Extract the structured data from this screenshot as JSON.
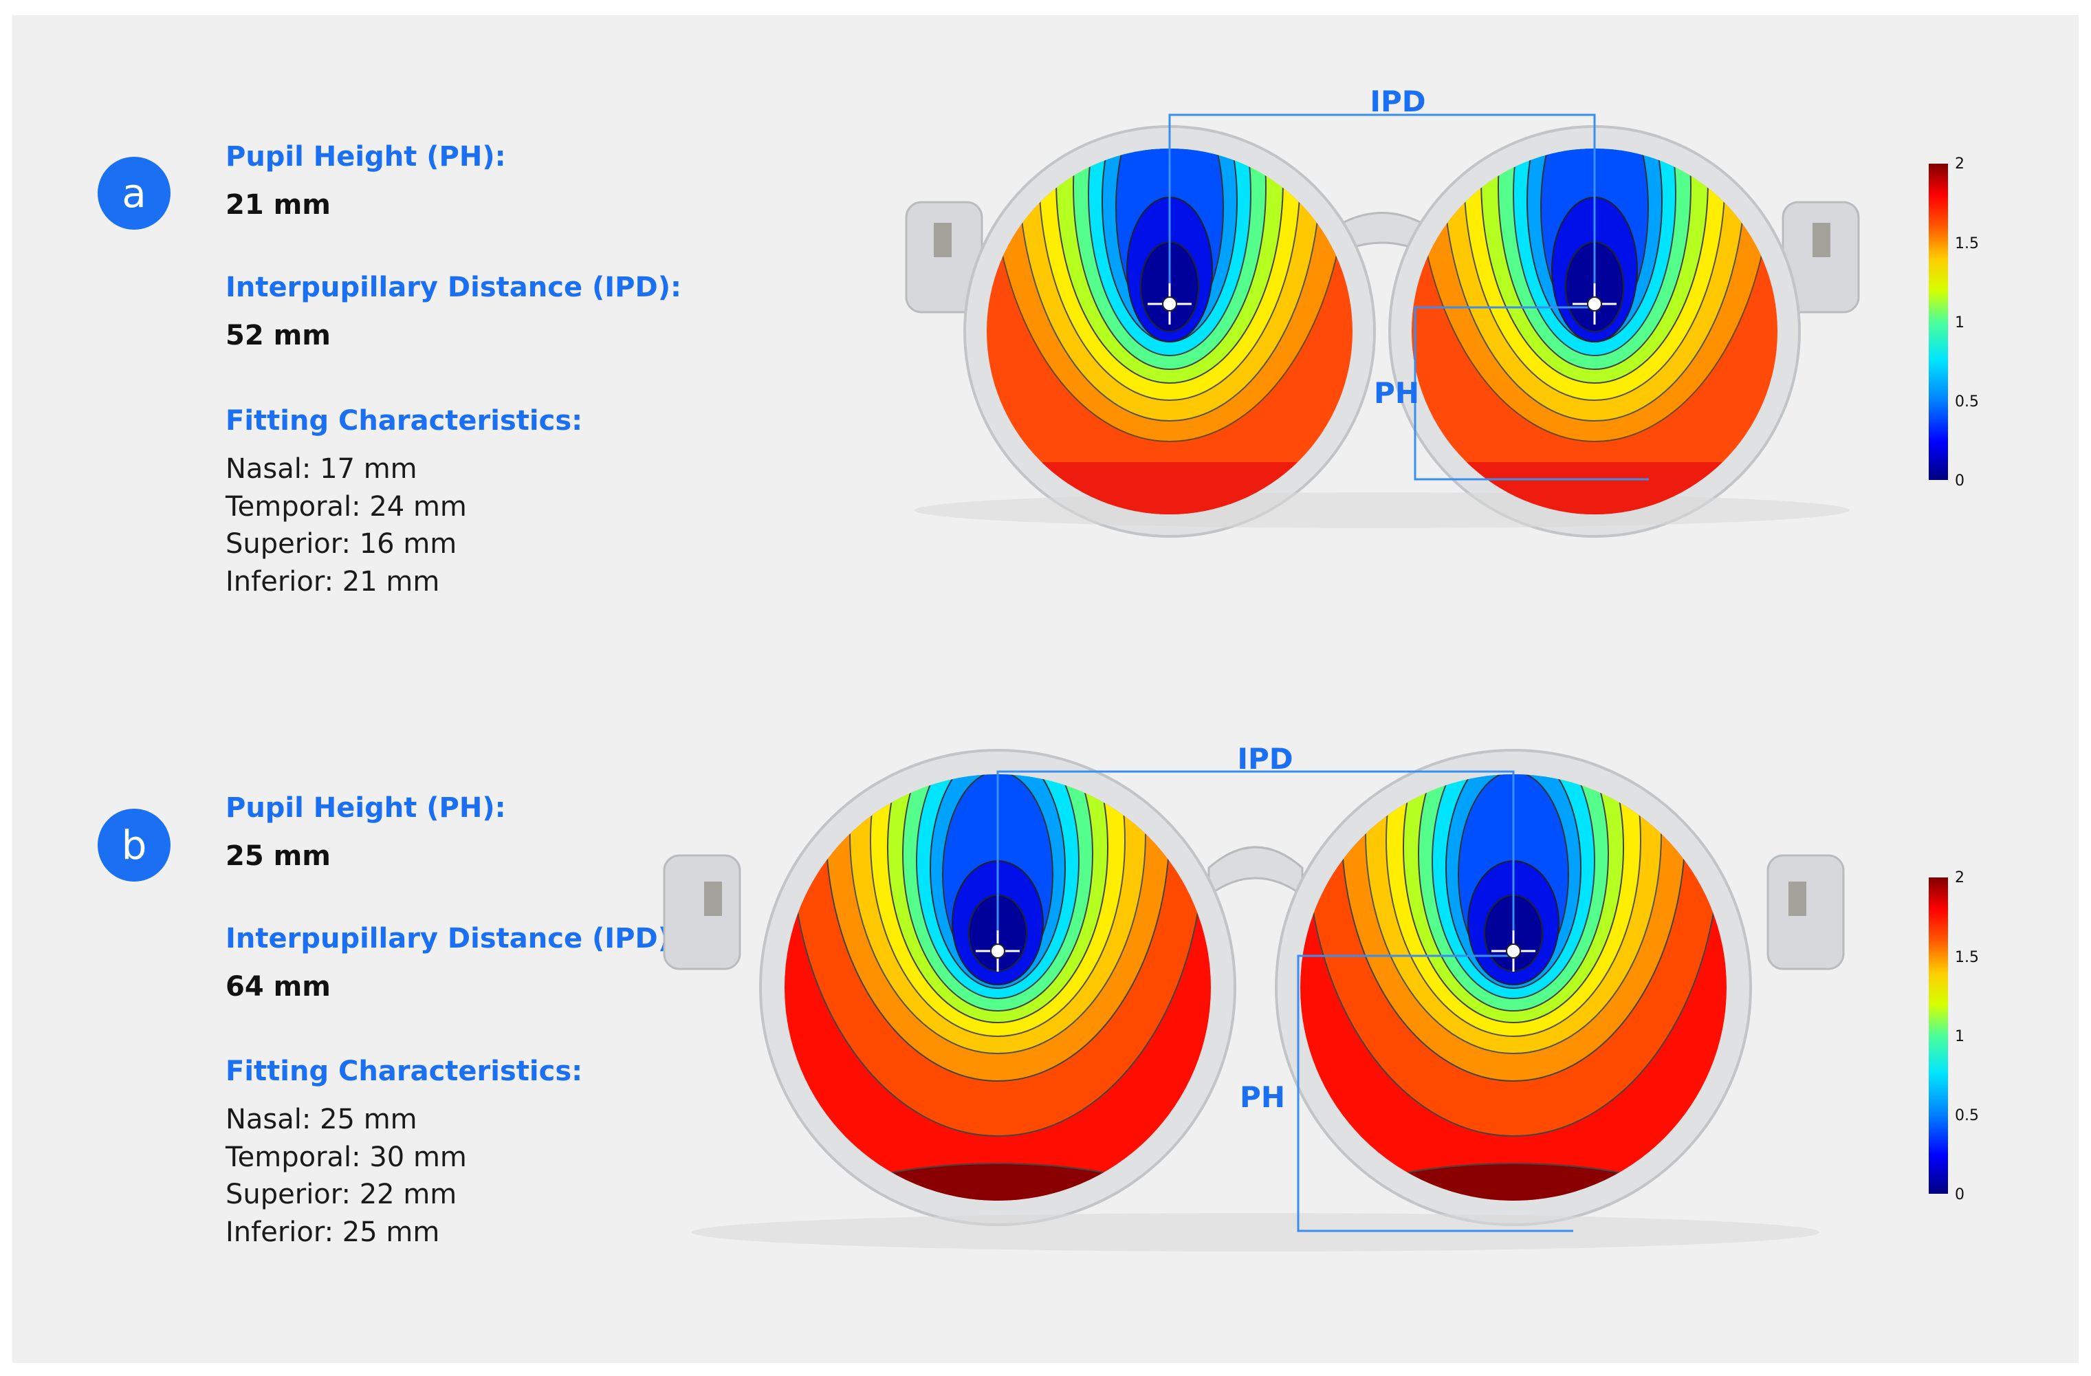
{
  "panels": [
    {
      "badge": "a",
      "pupil_height_label": "Pupil Height (PH):",
      "pupil_height_value": "21 mm",
      "ipd_label": "Interpupillary Distance (IPD):",
      "ipd_value": "52 mm",
      "fitting_label": "Fitting Characteristics:",
      "fitting": [
        "Nasal: 17 mm",
        "Temporal: 24 mm",
        "Superior: 16 mm",
        "Inferior: 21 mm"
      ],
      "diagram_ipd_label": "IPD",
      "diagram_ph_label": "PH"
    },
    {
      "badge": "b",
      "pupil_height_label": "Pupil Height (PH):",
      "pupil_height_value": "25 mm",
      "ipd_label": "Interpupillary Distance (IPD):",
      "ipd_value": "64 mm",
      "fitting_label": "Fitting Characteristics:",
      "fitting": [
        "Nasal: 25 mm",
        "Temporal: 30 mm",
        "Superior: 22 mm",
        "Inferior: 25 mm"
      ],
      "diagram_ipd_label": "IPD",
      "diagram_ph_label": "PH"
    }
  ],
  "colorbar": {
    "ticks": [
      "2",
      "1.5",
      "1",
      "0.5",
      "0"
    ],
    "min": 0,
    "max": 2,
    "colors": [
      "#00007f",
      "#0000ff",
      "#0080ff",
      "#00e5ff",
      "#4cff99",
      "#d5ff00",
      "#ffcc00",
      "#ff5a00",
      "#ff0000",
      "#800000"
    ]
  },
  "accent_color": "#1b6ff2"
}
